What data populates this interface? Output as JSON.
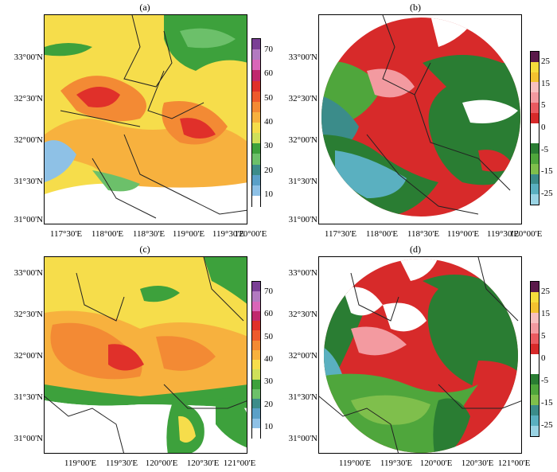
{
  "panels": [
    {
      "label": "(a)",
      "lat_labels": [
        "33°00'N",
        "32°30'N",
        "32°00'N",
        "31°30'N",
        "31°00'N"
      ],
      "lon_labels": [
        "117°30'E",
        "118°00'E",
        "118°30'E",
        "119°00'E",
        "119°30'E",
        "120°00'E"
      ],
      "colorbar": "reflectivity"
    },
    {
      "label": "(b)",
      "lat_labels": [
        "33°00'N",
        "32°30'N",
        "32°00'N",
        "31°30'N",
        "31°00'N"
      ],
      "lon_labels": [
        "117°30'E",
        "118°00'E",
        "118°30'E",
        "119°00'E",
        "119°30'E",
        "120°00'E"
      ],
      "colorbar": "velocity"
    },
    {
      "label": "(c)",
      "lat_labels": [
        "33°00'N",
        "32°30'N",
        "32°00'N",
        "31°30'N",
        "31°00'N"
      ],
      "lon_labels": [
        "119°00'E",
        "119°30'E",
        "120°00'E",
        "120°30'E",
        "121°00'E"
      ],
      "colorbar": "reflectivity"
    },
    {
      "label": "(d)",
      "lat_labels": [
        "33°00'N",
        "32°30'N",
        "32°00'N",
        "31°30'N",
        "31°00'N"
      ],
      "lon_labels": [
        "119°00'E",
        "119°30'E",
        "120°00'E",
        "120°30'E",
        "121°00'E"
      ],
      "colorbar": "velocity"
    }
  ],
  "colorbars": {
    "reflectivity": {
      "labels": [
        "70",
        "60",
        "50",
        "40",
        "30",
        "20",
        "10"
      ],
      "colors": [
        "#7a3f95",
        "#b27ac0",
        "#d966b8",
        "#c0286d",
        "#e0302a",
        "#ee5a2c",
        "#f38a34",
        "#f7b13e",
        "#f6dd4b",
        "#cfe05a",
        "#3da13c",
        "#6cc06a",
        "#3c8c8a",
        "#5aa0c8",
        "#8ec1e6",
        "#ffffff"
      ]
    },
    "velocity": {
      "labels": [
        "25",
        "15",
        "5",
        "0",
        "-5",
        "-15",
        "-25"
      ],
      "colors": [
        "#5a1a4a",
        "#f6dd3c",
        "#f3c230",
        "#f8c0c0",
        "#f39aa0",
        "#ea5a60",
        "#d72a2a",
        "#ffffff",
        "#ffffff",
        "#2a7d33",
        "#4fa63c",
        "#7fbf4c",
        "#3b8c8a",
        "#5ab0c0",
        "#9ad4e4"
      ]
    }
  }
}
